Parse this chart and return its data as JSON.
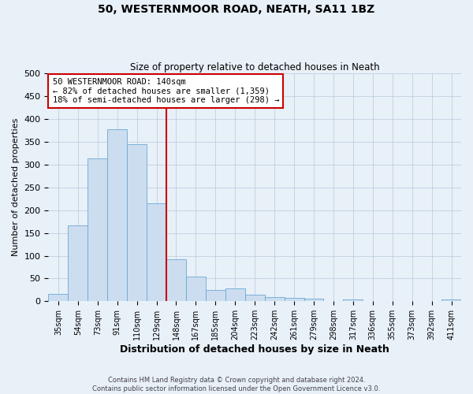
{
  "title": "50, WESTERNMOOR ROAD, NEATH, SA11 1BZ",
  "subtitle": "Size of property relative to detached houses in Neath",
  "xlabel": "Distribution of detached houses by size in Neath",
  "ylabel": "Number of detached properties",
  "bar_color": "#ccddf0",
  "bar_edge_color": "#6aaad4",
  "background_color": "#e8f0f8",
  "categories": [
    "35sqm",
    "54sqm",
    "73sqm",
    "91sqm",
    "110sqm",
    "129sqm",
    "148sqm",
    "167sqm",
    "185sqm",
    "204sqm",
    "223sqm",
    "242sqm",
    "261sqm",
    "279sqm",
    "298sqm",
    "317sqm",
    "336sqm",
    "355sqm",
    "373sqm",
    "392sqm",
    "411sqm"
  ],
  "values": [
    16,
    167,
    313,
    377,
    345,
    215,
    93,
    55,
    25,
    29,
    15,
    10,
    8,
    5,
    0,
    4,
    0,
    0,
    0,
    0,
    4
  ],
  "ylim": [
    0,
    500
  ],
  "yticks": [
    0,
    50,
    100,
    150,
    200,
    250,
    300,
    350,
    400,
    450,
    500
  ],
  "property_label": "50 WESTERNMOOR ROAD: 140sqm",
  "annotation_line1": "← 82% of detached houses are smaller (1,359)",
  "annotation_line2": "18% of semi-detached houses are larger (298) →",
  "vline_x_index": 5.5,
  "footer_line1": "Contains HM Land Registry data © Crown copyright and database right 2024.",
  "footer_line2": "Contains public sector information licensed under the Open Government Licence v3.0."
}
